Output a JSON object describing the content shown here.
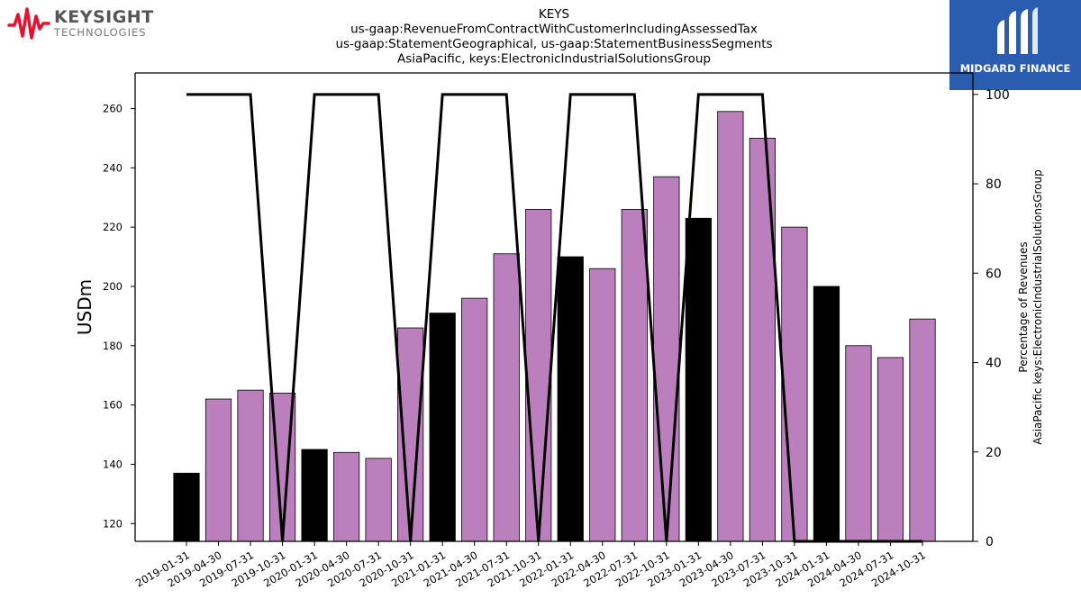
{
  "logos": {
    "left": {
      "brand": "KEYSIGHT",
      "sub": "TECHNOLOGIES",
      "accent": "#e8112d"
    },
    "right": {
      "text": "MIDGARD FINANCE",
      "background": "#2a5db0"
    }
  },
  "chart_data": {
    "type": "bar",
    "title_lines": [
      "KEYS",
      "us-gaap:RevenueFromContractWithCustomerIncludingAssessedTax",
      "us-gaap:StatementGeographical, us-gaap:StatementBusinessSegments",
      "AsiaPacific, keys:ElectronicIndustrialSolutionsGroup"
    ],
    "ylabel": "USDm",
    "y2label_lines": [
      "Percentage of Revenues",
      "AsiaPacific keys:ElectronicIndustrialSolutionsGroup"
    ],
    "ylim": [
      114,
      272
    ],
    "y2lim": [
      0,
      104.8
    ],
    "yticks": [
      120,
      140,
      160,
      180,
      200,
      220,
      240,
      260
    ],
    "y2ticks": [
      0,
      20,
      40,
      60,
      80,
      100
    ],
    "categories": [
      "2019-01-31",
      "2019-04-30",
      "2019-07-31",
      "2019-10-31",
      "2020-01-31",
      "2020-04-30",
      "2020-07-31",
      "2020-10-31",
      "2021-01-31",
      "2021-04-30",
      "2021-07-31",
      "2021-10-31",
      "2022-01-31",
      "2022-04-30",
      "2022-07-31",
      "2022-10-31",
      "2023-01-31",
      "2023-04-30",
      "2023-07-31",
      "2023-10-31",
      "2024-01-31",
      "2024-04-30",
      "2024-07-31",
      "2024-10-31"
    ],
    "values": [
      137,
      162,
      165,
      164,
      145,
      144,
      142,
      186,
      191,
      196,
      211,
      226,
      210,
      206,
      226,
      237,
      223,
      259,
      250,
      220,
      200,
      180,
      176,
      189
    ],
    "bar_colors": [
      "#000000",
      "#bb7fbd",
      "#bb7fbd",
      "#bb7fbd",
      "#000000",
      "#bb7fbd",
      "#bb7fbd",
      "#bb7fbd",
      "#000000",
      "#bb7fbd",
      "#bb7fbd",
      "#bb7fbd",
      "#000000",
      "#bb7fbd",
      "#bb7fbd",
      "#bb7fbd",
      "#000000",
      "#bb7fbd",
      "#bb7fbd",
      "#bb7fbd",
      "#000000",
      "#bb7fbd",
      "#bb7fbd",
      "#bb7fbd"
    ],
    "percentage_line": [
      100,
      100,
      100,
      0,
      100,
      100,
      100,
      0,
      100,
      100,
      100,
      0,
      100,
      100,
      100,
      0,
      100,
      100,
      100,
      0,
      0,
      0,
      0,
      0
    ],
    "line_color": "#000000",
    "bar_edge_color": "#000000",
    "grid": false,
    "legend": "none"
  }
}
